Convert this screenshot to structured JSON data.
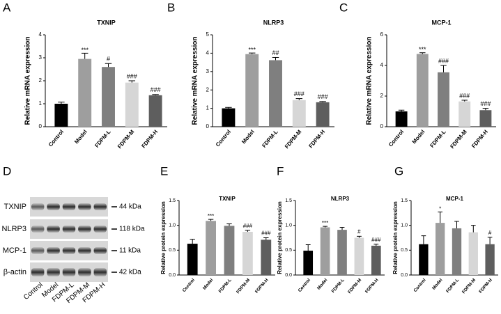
{
  "chart_data": [
    {
      "type": "bar",
      "panel": "A",
      "title": "TXNIP",
      "ylabel": "Relative mRNA expression",
      "categories": [
        "Control",
        "Model",
        "FDPM-L",
        "FDPM-M",
        "FDPM-H"
      ],
      "values": [
        1.0,
        2.95,
        2.6,
        1.92,
        1.37
      ],
      "errors": [
        0.07,
        0.25,
        0.15,
        0.08,
        0.03
      ],
      "annotations": [
        null,
        "***",
        "#",
        "###",
        "###"
      ],
      "colors": [
        "#000000",
        "#9e9e9e",
        "#7f7f7f",
        "#d6d6d6",
        "#5e5e5e"
      ],
      "ylim": [
        0,
        4
      ],
      "yticks": [
        0,
        1,
        2,
        3,
        4
      ]
    },
    {
      "type": "bar",
      "panel": "B",
      "title": "NLRP3",
      "ylabel": "Relative mRNA expression",
      "categories": [
        "Control",
        "Model",
        "FDPM-L",
        "FDPM-M",
        "FDPM-H"
      ],
      "values": [
        1.0,
        3.95,
        3.62,
        1.45,
        1.33
      ],
      "errors": [
        0.05,
        0.06,
        0.15,
        0.08,
        0.04
      ],
      "annotations": [
        null,
        "***",
        "##",
        "###",
        "###"
      ],
      "colors": [
        "#000000",
        "#9e9e9e",
        "#7f7f7f",
        "#d6d6d6",
        "#5e5e5e"
      ],
      "ylim": [
        0,
        5
      ],
      "yticks": [
        0,
        1,
        2,
        3,
        4,
        5
      ]
    },
    {
      "type": "bar",
      "panel": "C",
      "title": "MCP-1",
      "ylabel": "Relative mRNA expression",
      "categories": [
        "Control",
        "Model",
        "FDPM-L",
        "FDPM-M",
        "FDPM-H"
      ],
      "values": [
        1.0,
        4.75,
        3.55,
        1.65,
        1.08
      ],
      "errors": [
        0.08,
        0.08,
        0.45,
        0.08,
        0.12
      ],
      "annotations": [
        null,
        "***",
        "###",
        "###",
        "###"
      ],
      "colors": [
        "#000000",
        "#9e9e9e",
        "#7f7f7f",
        "#d6d6d6",
        "#5e5e5e"
      ],
      "ylim": [
        0,
        6
      ],
      "yticks": [
        0,
        2,
        4,
        6
      ]
    },
    {
      "type": "bar",
      "panel": "E",
      "title": "TXNIP",
      "ylabel": "Relative protein expression",
      "categories": [
        "Control",
        "Model",
        "FDPM-L",
        "FDPM-M",
        "FDPM-H"
      ],
      "values": [
        0.63,
        1.09,
        0.99,
        0.87,
        0.71
      ],
      "errors": [
        0.09,
        0.03,
        0.04,
        0.03,
        0.04
      ],
      "annotations": [
        null,
        "***",
        null,
        "###",
        "###"
      ],
      "colors": [
        "#000000",
        "#9e9e9e",
        "#7f7f7f",
        "#d6d6d6",
        "#5e5e5e"
      ],
      "ylim": [
        0,
        1.5
      ],
      "yticks": [
        {
          "value": 0,
          "label": "0.0"
        },
        0.5,
        {
          "value": 1,
          "label": "1.0"
        },
        1.5
      ]
    },
    {
      "type": "bar",
      "panel": "F",
      "title": "NLRP3",
      "ylabel": "Relative protein expression",
      "categories": [
        "Control",
        "Model",
        "FDPM-L",
        "FDPM-M",
        "FDPM-H"
      ],
      "values": [
        0.49,
        0.96,
        0.91,
        0.75,
        0.59
      ],
      "errors": [
        0.12,
        0.02,
        0.05,
        0.03,
        0.03
      ],
      "annotations": [
        null,
        "***",
        null,
        "#",
        "###"
      ],
      "colors": [
        "#000000",
        "#9e9e9e",
        "#7f7f7f",
        "#d6d6d6",
        "#5e5e5e"
      ],
      "ylim": [
        0,
        1.5
      ],
      "yticks": [
        {
          "value": 0,
          "label": "0.0"
        },
        0.5,
        {
          "value": 1,
          "label": "1.0"
        },
        1.5
      ]
    },
    {
      "type": "bar",
      "panel": "G",
      "title": "MCP-1",
      "ylabel": "Relative protein expression",
      "categories": [
        "Control",
        "Model",
        "FDPM-L",
        "FDPM-M",
        "FDPM-H"
      ],
      "values": [
        0.62,
        1.05,
        0.94,
        0.86,
        0.62
      ],
      "errors": [
        0.17,
        0.22,
        0.14,
        0.14,
        0.14
      ],
      "annotations": [
        null,
        "*",
        null,
        null,
        "#"
      ],
      "colors": [
        "#000000",
        "#9e9e9e",
        "#7f7f7f",
        "#d6d6d6",
        "#5e5e5e"
      ],
      "ylim": [
        0,
        1.5
      ],
      "yticks": [
        {
          "value": 0,
          "label": "0.0"
        },
        0.5,
        {
          "value": 1,
          "label": "1.0"
        },
        1.5
      ]
    }
  ],
  "blot": {
    "panel": "D",
    "rows": [
      {
        "label": "TXNIP",
        "size": "44 kDa"
      },
      {
        "label": "NLRP3",
        "size": "118 kDa"
      },
      {
        "label": "MCP-1",
        "size": "11 kDa"
      },
      {
        "label": "β-actin",
        "size": "42 kDa"
      }
    ],
    "lanes": [
      "Control",
      "Model",
      "FDPM-L",
      "FDPM-M",
      "FDPM-H"
    ]
  }
}
